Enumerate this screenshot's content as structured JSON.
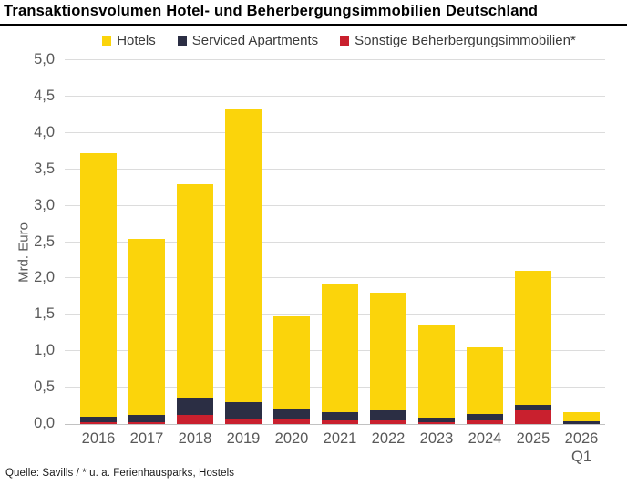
{
  "header": {
    "title": "Transaktionsvolumen Hotel- und Beherbergungsimmobilien Deutschland"
  },
  "footer": {
    "source": "Quelle: Savills / * u. a. Ferienhausparks, Hostels"
  },
  "colors": {
    "hotels": "#FBD40B",
    "serviced_apartments": "#2B2E44",
    "sonstige": "#C9202E",
    "gridline": "#DCDCDC",
    "axis_text": "#595959",
    "title_text": "#000000"
  },
  "chart_data": {
    "type": "bar",
    "stacked": true,
    "title": "Transaktionsvolumen Hotel- und Beherbergungsimmobilien Deutschland",
    "ylabel": "Mrd. Euro",
    "xlabel": "",
    "ylim": [
      0,
      5
    ],
    "ytick_step": 0.5,
    "ytick_labels": [
      "0,0",
      "0,5",
      "1,0",
      "1,5",
      "2,0",
      "2,5",
      "3,0",
      "3,5",
      "4,0",
      "4,5",
      "5,0"
    ],
    "grid": true,
    "legend_position": "top",
    "categories": [
      "2016",
      "2017",
      "2018",
      "2019",
      "2020",
      "2021",
      "2022",
      "2023",
      "2024",
      "2025",
      "2026\nQ1"
    ],
    "series": [
      {
        "name": "Hotels",
        "color": "#FBD40B",
        "values": [
          3.62,
          2.43,
          2.93,
          4.03,
          1.28,
          1.76,
          1.62,
          1.27,
          0.91,
          1.84,
          0.12
        ]
      },
      {
        "name": "Serviced Apartments",
        "color": "#2B2E44",
        "values": [
          0.07,
          0.09,
          0.25,
          0.22,
          0.12,
          0.11,
          0.14,
          0.06,
          0.09,
          0.07,
          0.04
        ]
      },
      {
        "name": "Sonstige Beherbergungsimmobilien*",
        "color": "#C9202E",
        "values": [
          0.03,
          0.03,
          0.12,
          0.08,
          0.08,
          0.05,
          0.05,
          0.03,
          0.05,
          0.19,
          0.0
        ]
      }
    ],
    "totals": [
      3.72,
      2.55,
      3.3,
      4.33,
      1.48,
      1.92,
      1.81,
      1.36,
      1.05,
      2.1,
      0.16
    ]
  }
}
